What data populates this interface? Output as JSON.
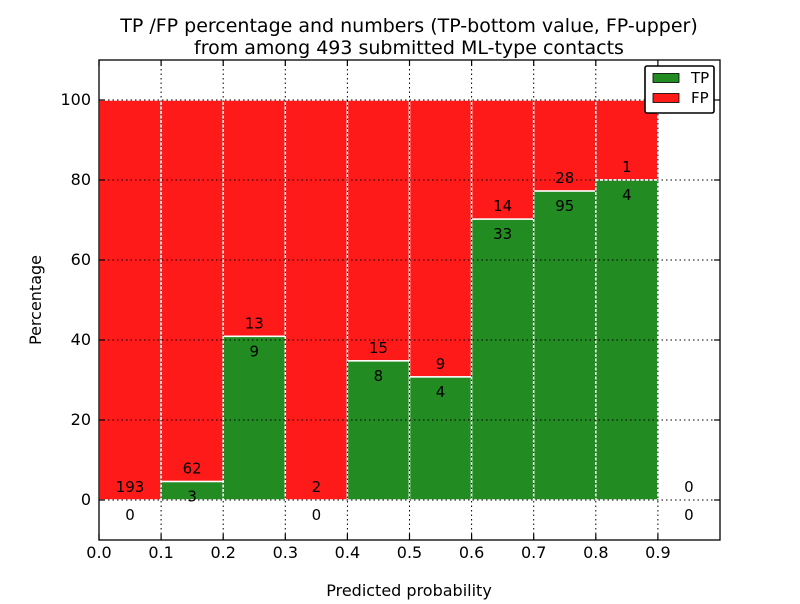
{
  "chart_data": {
    "type": "bar",
    "stacked": true,
    "title_line1": "TP /FP percentage and numbers (TP-bottom value, FP-upper)",
    "title_line2": "from among 493 submitted ML-type contacts",
    "xlabel": "Predicted probability",
    "ylabel": "Percentage",
    "total_contacts": 493,
    "xlim": [
      0.0,
      1.0
    ],
    "ylim": [
      -10,
      110
    ],
    "xtick_labels": [
      "0.0",
      "0.1",
      "0.2",
      "0.3",
      "0.4",
      "0.5",
      "0.6",
      "0.7",
      "0.8",
      "0.9"
    ],
    "ytick_values": [
      0,
      20,
      40,
      60,
      80,
      100
    ],
    "grid": true,
    "grid_style": "dotted",
    "legend_position": "upper-right",
    "legend": [
      {
        "label": "TP",
        "color": "#228B22"
      },
      {
        "label": "FP",
        "color": "#FF1A1A"
      }
    ],
    "colors": {
      "tp": "#228B22",
      "fp": "#FF1A1A",
      "bar_edge": "#FFFFFF",
      "grid": "#000000",
      "frame": "#000000",
      "background": "#FFFFFF"
    },
    "bins": [
      {
        "x0": 0.0,
        "x1": 0.1,
        "tp": 0,
        "fp": 193,
        "tp_pct": 0.0,
        "fp_pct": 100.0
      },
      {
        "x0": 0.1,
        "x1": 0.2,
        "tp": 3,
        "fp": 62,
        "tp_pct": 4.6,
        "fp_pct": 95.4
      },
      {
        "x0": 0.2,
        "x1": 0.3,
        "tp": 9,
        "fp": 13,
        "tp_pct": 40.9,
        "fp_pct": 59.1
      },
      {
        "x0": 0.3,
        "x1": 0.4,
        "tp": 0,
        "fp": 2,
        "tp_pct": 0.0,
        "fp_pct": 100.0
      },
      {
        "x0": 0.4,
        "x1": 0.5,
        "tp": 8,
        "fp": 15,
        "tp_pct": 34.8,
        "fp_pct": 65.2
      },
      {
        "x0": 0.5,
        "x1": 0.6,
        "tp": 4,
        "fp": 9,
        "tp_pct": 30.8,
        "fp_pct": 69.2
      },
      {
        "x0": 0.6,
        "x1": 0.7,
        "tp": 33,
        "fp": 14,
        "tp_pct": 70.2,
        "fp_pct": 29.8
      },
      {
        "x0": 0.7,
        "x1": 0.8,
        "tp": 95,
        "fp": 28,
        "tp_pct": 77.2,
        "fp_pct": 22.8
      },
      {
        "x0": 0.8,
        "x1": 0.9,
        "tp": 4,
        "fp": 1,
        "tp_pct": 80.0,
        "fp_pct": 20.0
      },
      {
        "x0": 0.9,
        "x1": 1.0,
        "tp": 0,
        "fp": 0,
        "tp_pct": null,
        "fp_pct": null
      }
    ]
  }
}
